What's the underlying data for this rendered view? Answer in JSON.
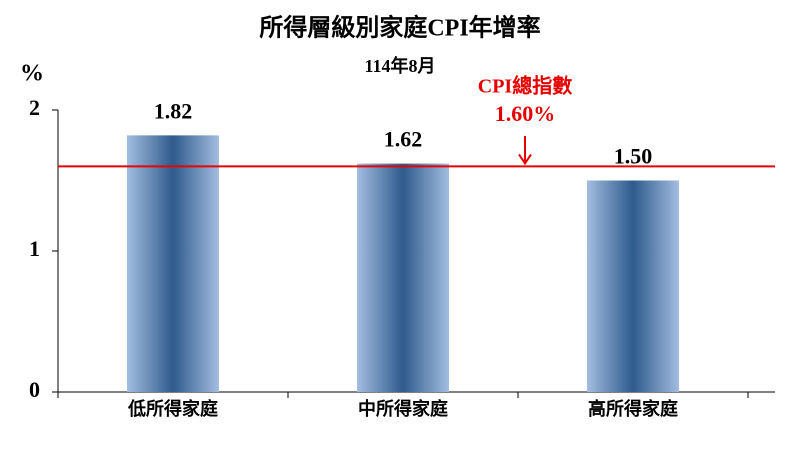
{
  "chart_data": {
    "type": "bar",
    "title": "所得層級別家庭CPI年增率",
    "subtitle": "114年8月",
    "y_label": "%",
    "categories": [
      "低所得家庭",
      "中所得家庭",
      "高所得家庭"
    ],
    "values": [
      1.82,
      1.62,
      1.5
    ],
    "value_labels": [
      "1.82",
      "1.62",
      "1.50"
    ],
    "color": "#2e5a8c",
    "ylim": [
      0,
      2
    ],
    "yticks": [
      0,
      1,
      2
    ],
    "grid": false,
    "reference_line": {
      "name": "CPI總指數",
      "value": 1.6,
      "label": "1.60%",
      "color": "#e60000"
    }
  }
}
